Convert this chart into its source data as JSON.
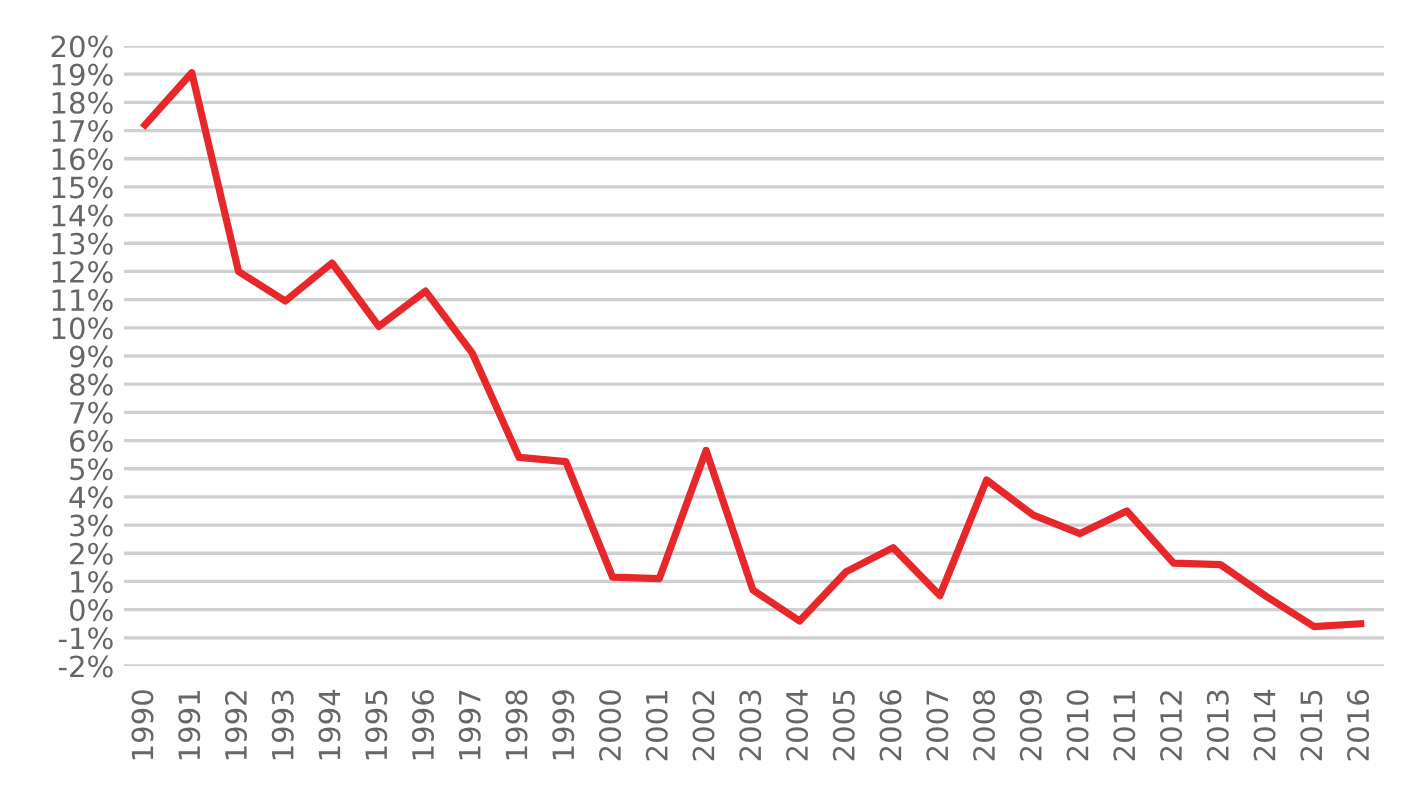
{
  "chart_data": {
    "type": "line",
    "categories": [
      "1990",
      "1991",
      "1992",
      "1993",
      "1994",
      "1995",
      "1996",
      "1997",
      "1998",
      "1999",
      "2000",
      "2001",
      "2002",
      "2003",
      "2004",
      "2005",
      "2006",
      "2007",
      "2008",
      "2009",
      "2010",
      "2011",
      "2012",
      "2013",
      "2014",
      "2015",
      "2016"
    ],
    "series": [
      {
        "color": "#e8272a",
        "values": [
          17.2,
          19.05,
          12.0,
          10.95,
          12.3,
          10.05,
          11.3,
          9.1,
          5.4,
          5.25,
          1.15,
          1.1,
          5.65,
          0.7,
          -0.4,
          1.35,
          2.2,
          0.5,
          4.6,
          3.35,
          2.7,
          3.5,
          1.65,
          1.6,
          0.45,
          -0.6,
          -0.5
        ]
      }
    ],
    "ylim": [
      -2,
      20
    ],
    "yticks": [
      {
        "value": -2,
        "label": "-2%"
      },
      {
        "value": -1,
        "label": "-1%"
      },
      {
        "value": 0,
        "label": "0%"
      },
      {
        "value": 1,
        "label": "1%"
      },
      {
        "value": 2,
        "label": "2%"
      },
      {
        "value": 3,
        "label": "3%"
      },
      {
        "value": 4,
        "label": "4%"
      },
      {
        "value": 5,
        "label": "5%"
      },
      {
        "value": 6,
        "label": "6%"
      },
      {
        "value": 7,
        "label": "7%"
      },
      {
        "value": 8,
        "label": "8%"
      },
      {
        "value": 9,
        "label": "9%"
      },
      {
        "value": 10,
        "label": "10%"
      },
      {
        "value": 11,
        "label": "11%"
      },
      {
        "value": 12,
        "label": "12%"
      },
      {
        "value": 13,
        "label": "13%"
      },
      {
        "value": 14,
        "label": "14%"
      },
      {
        "value": 15,
        "label": "15%"
      },
      {
        "value": 16,
        "label": "16%"
      },
      {
        "value": 17,
        "label": "17%"
      },
      {
        "value": 18,
        "label": "18%"
      },
      {
        "value": 19,
        "label": "19%"
      },
      {
        "value": 20,
        "label": "20%"
      }
    ],
    "grid": "y",
    "marker": "none",
    "line_style": "solid"
  }
}
